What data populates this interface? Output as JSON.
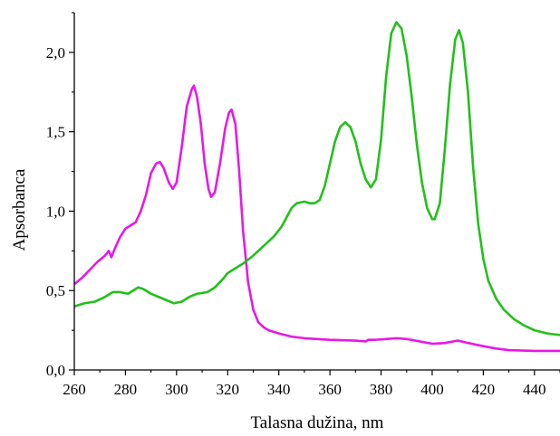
{
  "chart_data": {
    "type": "line",
    "xlabel": "Talasna dužina, nm",
    "ylabel": "Apsorbanca",
    "xlim": [
      260,
      450
    ],
    "ylim": [
      0,
      2.25
    ],
    "x_ticks": [
      260,
      280,
      300,
      320,
      340,
      360,
      380,
      400,
      420,
      440
    ],
    "x_tick_labels": [
      "260",
      "280",
      "300",
      "320",
      "340",
      "360",
      "380",
      "400",
      "420",
      "440"
    ],
    "y_ticks": [
      0,
      0.5,
      1.0,
      1.5,
      2.0
    ],
    "y_tick_labels": [
      "0,0",
      "0,5",
      "1,0",
      "1,5",
      "2,0"
    ],
    "grid": false,
    "legend": "none",
    "series": [
      {
        "color": "#e619e6",
        "points": [
          [
            260,
            0.54
          ],
          [
            263,
            0.58
          ],
          [
            266,
            0.63
          ],
          [
            269,
            0.68
          ],
          [
            272,
            0.72
          ],
          [
            273.5,
            0.75
          ],
          [
            274.5,
            0.71
          ],
          [
            276,
            0.77
          ],
          [
            278,
            0.84
          ],
          [
            280,
            0.89
          ],
          [
            282,
            0.91
          ],
          [
            284,
            0.93
          ],
          [
            286,
            1.0
          ],
          [
            288,
            1.1
          ],
          [
            290,
            1.24
          ],
          [
            292,
            1.3
          ],
          [
            293.5,
            1.31
          ],
          [
            295,
            1.27
          ],
          [
            297,
            1.18
          ],
          [
            298.5,
            1.14
          ],
          [
            300,
            1.18
          ],
          [
            302,
            1.4
          ],
          [
            304,
            1.66
          ],
          [
            306,
            1.77
          ],
          [
            306.8,
            1.79
          ],
          [
            308,
            1.72
          ],
          [
            309.5,
            1.55
          ],
          [
            311,
            1.3
          ],
          [
            312.5,
            1.14
          ],
          [
            313.5,
            1.09
          ],
          [
            315,
            1.12
          ],
          [
            317,
            1.3
          ],
          [
            319,
            1.52
          ],
          [
            320.5,
            1.62
          ],
          [
            321.5,
            1.64
          ],
          [
            323,
            1.55
          ],
          [
            324.5,
            1.25
          ],
          [
            326,
            0.88
          ],
          [
            328,
            0.55
          ],
          [
            330,
            0.38
          ],
          [
            332,
            0.3
          ],
          [
            334,
            0.27
          ],
          [
            336,
            0.25
          ],
          [
            340,
            0.23
          ],
          [
            345,
            0.21
          ],
          [
            350,
            0.2
          ],
          [
            360,
            0.19
          ],
          [
            370,
            0.185
          ],
          [
            374,
            0.18
          ],
          [
            375,
            0.19
          ],
          [
            378,
            0.19
          ],
          [
            382,
            0.195
          ],
          [
            386,
            0.2
          ],
          [
            390,
            0.195
          ],
          [
            395,
            0.18
          ],
          [
            400,
            0.165
          ],
          [
            405,
            0.17
          ],
          [
            410,
            0.185
          ],
          [
            414,
            0.17
          ],
          [
            420,
            0.15
          ],
          [
            425,
            0.135
          ],
          [
            430,
            0.125
          ],
          [
            440,
            0.12
          ],
          [
            450,
            0.12
          ]
        ]
      },
      {
        "color": "#22c01a",
        "points": [
          [
            260,
            0.4
          ],
          [
            264,
            0.42
          ],
          [
            268,
            0.43
          ],
          [
            272,
            0.46
          ],
          [
            275,
            0.49
          ],
          [
            278,
            0.49
          ],
          [
            281,
            0.48
          ],
          [
            283,
            0.5
          ],
          [
            285,
            0.52
          ],
          [
            287,
            0.51
          ],
          [
            290,
            0.48
          ],
          [
            293,
            0.46
          ],
          [
            296,
            0.44
          ],
          [
            299,
            0.42
          ],
          [
            302,
            0.43
          ],
          [
            305,
            0.46
          ],
          [
            308,
            0.48
          ],
          [
            312,
            0.49
          ],
          [
            315,
            0.52
          ],
          [
            318,
            0.57
          ],
          [
            320,
            0.61
          ],
          [
            323,
            0.64
          ],
          [
            326,
            0.67
          ],
          [
            330,
            0.72
          ],
          [
            334,
            0.78
          ],
          [
            338,
            0.84
          ],
          [
            341,
            0.9
          ],
          [
            343,
            0.96
          ],
          [
            345,
            1.02
          ],
          [
            347,
            1.05
          ],
          [
            350,
            1.06
          ],
          [
            352,
            1.05
          ],
          [
            354,
            1.05
          ],
          [
            356,
            1.07
          ],
          [
            358,
            1.16
          ],
          [
            360,
            1.3
          ],
          [
            362,
            1.44
          ],
          [
            364,
            1.53
          ],
          [
            366,
            1.56
          ],
          [
            368,
            1.53
          ],
          [
            370,
            1.44
          ],
          [
            372,
            1.3
          ],
          [
            374,
            1.2
          ],
          [
            376,
            1.15
          ],
          [
            378,
            1.2
          ],
          [
            380,
            1.45
          ],
          [
            382,
            1.85
          ],
          [
            384,
            2.12
          ],
          [
            386,
            2.19
          ],
          [
            388,
            2.15
          ],
          [
            390,
            1.98
          ],
          [
            392,
            1.72
          ],
          [
            394,
            1.42
          ],
          [
            396,
            1.18
          ],
          [
            398,
            1.02
          ],
          [
            400,
            0.95
          ],
          [
            401,
            0.95
          ],
          [
            403,
            1.05
          ],
          [
            405,
            1.4
          ],
          [
            407,
            1.8
          ],
          [
            409,
            2.08
          ],
          [
            410.5,
            2.14
          ],
          [
            412,
            2.06
          ],
          [
            414,
            1.75
          ],
          [
            416,
            1.28
          ],
          [
            418,
            0.92
          ],
          [
            420,
            0.7
          ],
          [
            422,
            0.56
          ],
          [
            425,
            0.45
          ],
          [
            428,
            0.38
          ],
          [
            432,
            0.32
          ],
          [
            436,
            0.28
          ],
          [
            440,
            0.25
          ],
          [
            445,
            0.23
          ],
          [
            450,
            0.22
          ]
        ]
      }
    ]
  }
}
